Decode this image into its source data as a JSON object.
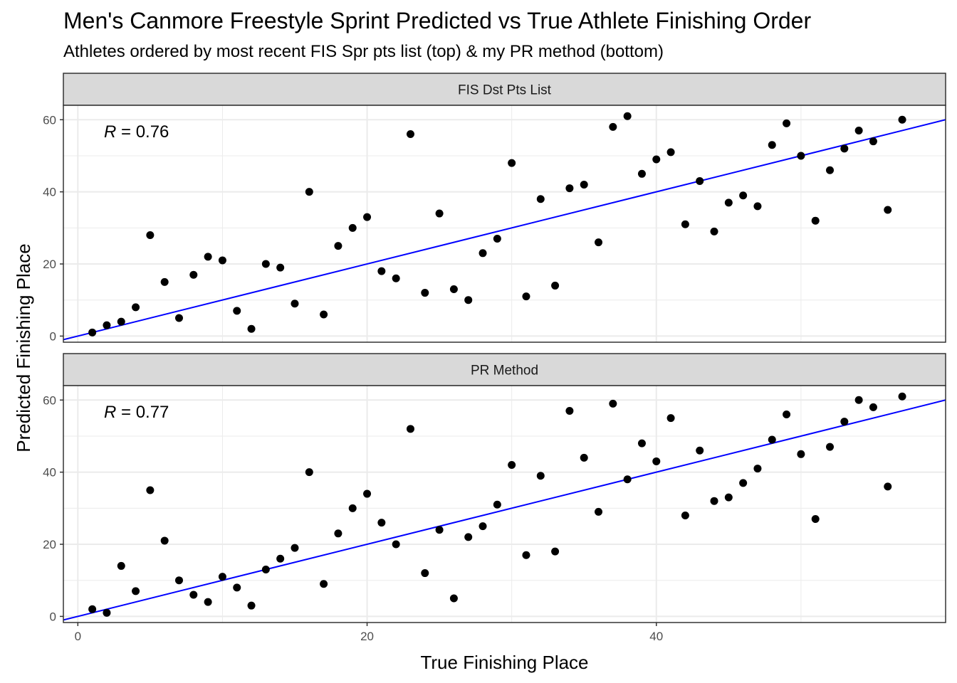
{
  "title": "Men's Canmore Freestyle Sprint Predicted vs True Athlete Finishing Order",
  "subtitle": "Athletes ordered by most recent FIS Spr pts list (top) & my PR method (bottom)",
  "colors": {
    "fit_line": "#0000ff",
    "points": "#000000",
    "strip_bg": "#d9d9d9",
    "grid": "#ebebeb"
  },
  "chart_data": [
    {
      "type": "scatter",
      "panel": "FIS Dst Pts List",
      "xlabel": "True Finishing Place",
      "ylabel": "Predicted Finishing Place",
      "xlim": [
        -1,
        60
      ],
      "ylim": [
        -1.7,
        64
      ],
      "xticks": [
        0,
        20,
        40
      ],
      "yticks": [
        0,
        20,
        40,
        60
      ],
      "grid": true,
      "annotation": {
        "italic": "R",
        "text": " = 0.76"
      },
      "fit_line": {
        "slope": 1,
        "intercept": 0
      },
      "x": [
        1,
        2,
        3,
        4,
        5,
        6,
        7,
        8,
        9,
        10,
        11,
        12,
        13,
        14,
        15,
        16,
        17,
        18,
        19,
        20,
        21,
        22,
        23,
        24,
        25,
        26,
        27,
        28,
        29,
        30,
        31,
        32,
        33,
        34,
        35,
        36,
        37,
        38,
        39,
        40,
        41,
        42,
        43,
        44,
        45,
        46,
        47,
        48,
        49,
        50,
        51,
        52,
        53,
        54,
        55,
        56,
        57
      ],
      "y": [
        1,
        3,
        4,
        8,
        28,
        15,
        5,
        17,
        22,
        21,
        7,
        2,
        20,
        19,
        9,
        40,
        6,
        25,
        30,
        33,
        18,
        16,
        56,
        12,
        34,
        13,
        10,
        23,
        27,
        48,
        11,
        38,
        14,
        41,
        42,
        26,
        58,
        61,
        45,
        49,
        51,
        31,
        43,
        29,
        37,
        39,
        36,
        53,
        59,
        50,
        32,
        46,
        52,
        57,
        54,
        35,
        60
      ]
    },
    {
      "type": "scatter",
      "panel": "PR Method",
      "xlabel": "True Finishing Place",
      "ylabel": "Predicted Finishing Place",
      "xlim": [
        -1,
        60
      ],
      "ylim": [
        -1.7,
        64
      ],
      "xticks": [
        0,
        20,
        40
      ],
      "yticks": [
        0,
        20,
        40,
        60
      ],
      "grid": true,
      "annotation": {
        "italic": "R",
        "text": " = 0.77"
      },
      "fit_line": {
        "slope": 1,
        "intercept": 0
      },
      "x": [
        1,
        2,
        3,
        4,
        5,
        6,
        7,
        8,
        9,
        10,
        11,
        12,
        13,
        14,
        15,
        16,
        17,
        18,
        19,
        20,
        21,
        22,
        23,
        24,
        25,
        26,
        27,
        28,
        29,
        30,
        31,
        32,
        33,
        34,
        35,
        36,
        37,
        38,
        39,
        40,
        41,
        42,
        43,
        44,
        45,
        46,
        47,
        48,
        49,
        50,
        51,
        52,
        53,
        54,
        55,
        56,
        57
      ],
      "y": [
        2,
        1,
        14,
        7,
        35,
        21,
        10,
        6,
        4,
        11,
        8,
        3,
        13,
        16,
        19,
        40,
        9,
        23,
        30,
        34,
        26,
        20,
        52,
        12,
        24,
        5,
        22,
        25,
        31,
        42,
        17,
        39,
        18,
        57,
        44,
        29,
        59,
        38,
        48,
        43,
        55,
        28,
        46,
        32,
        33,
        37,
        41,
        49,
        56,
        45,
        27,
        47,
        54,
        60,
        58,
        36,
        61
      ]
    }
  ]
}
